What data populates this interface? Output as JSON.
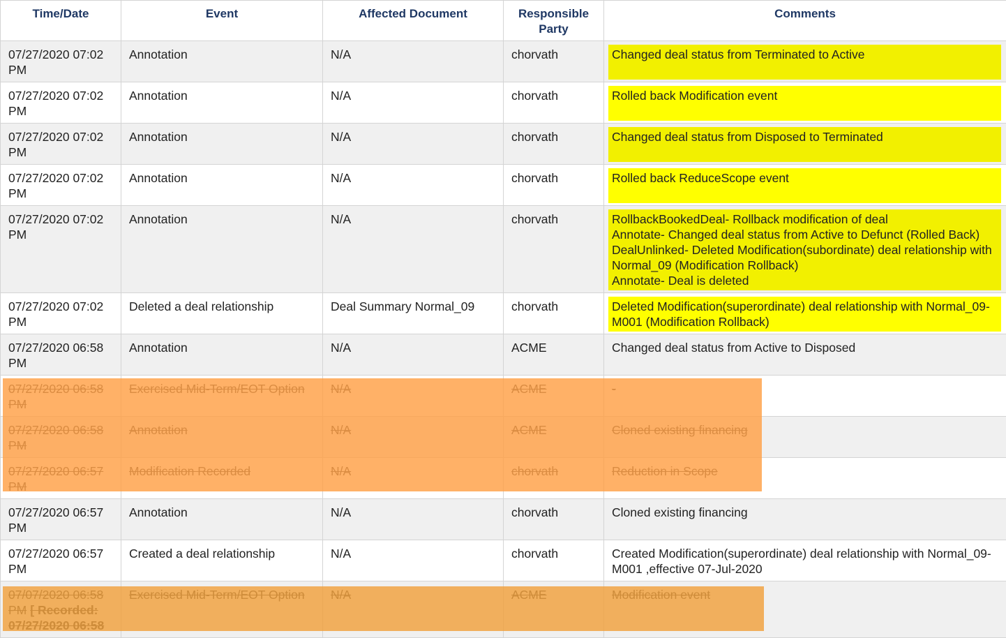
{
  "headers": {
    "time": "Time/Date",
    "event": "Event",
    "document": "Affected Document",
    "party_line1": "Responsible",
    "party_line2": "Party",
    "comments": "Comments"
  },
  "highlight_colors": {
    "yellow": "#ffff00",
    "orange": "#ffa64a"
  },
  "rows": [
    {
      "time": "07/27/2020 07:02 PM",
      "event": "Annotation",
      "document": "N/A",
      "party": "chorvath",
      "comment_lines": [
        "Changed deal status from Terminated to Active"
      ]
    },
    {
      "time": "07/27/2020 07:02 PM",
      "event": "Annotation",
      "document": "N/A",
      "party": "chorvath",
      "comment_lines": [
        "Rolled back Modification event"
      ]
    },
    {
      "time": "07/27/2020 07:02 PM",
      "event": "Annotation",
      "document": "N/A",
      "party": "chorvath",
      "comment_lines": [
        "Changed deal status from Disposed to Terminated"
      ]
    },
    {
      "time": "07/27/2020 07:02 PM",
      "event": "Annotation",
      "document": "N/A",
      "party": "chorvath",
      "comment_lines": [
        "Rolled back ReduceScope event"
      ]
    },
    {
      "time": "07/27/2020 07:02 PM",
      "event": "Annotation",
      "document": "N/A",
      "party": "chorvath",
      "comment_lines": [
        "RollbackBookedDeal- Rollback modification of deal",
        "Annotate- Changed deal status from Active to Defunct (Rolled Back)",
        "DealUnlinked- Deleted Modification(subordinate) deal relationship with Normal_09 (Modification Rollback)",
        "Annotate- Deal is deleted"
      ]
    },
    {
      "time": "07/27/2020 07:02 PM",
      "event": "Deleted a deal relationship",
      "document": "Deal Summary Normal_09",
      "party": "chorvath",
      "comment_lines": [
        "Deleted Modification(superordinate) deal relationship with Normal_09-M001 (Modification Rollback)"
      ]
    },
    {
      "time": "07/27/2020 06:58 PM",
      "event": "Annotation",
      "document": "N/A",
      "party": "ACME",
      "comment_lines": [
        "Changed deal status from Active to Disposed"
      ]
    },
    {
      "time": "07/27/2020 06:58 PM",
      "event": "Exercised Mid-Term/EOT Option",
      "document": "N/A",
      "party": "ACME",
      "comment_lines": [
        "-"
      ]
    },
    {
      "time": "07/27/2020 06:58 PM",
      "event": "Annotation",
      "document": "N/A",
      "party": "ACME",
      "comment_lines": [
        "Cloned existing financing"
      ]
    },
    {
      "time": "07/27/2020 06:57 PM",
      "event": "Modification Recorded",
      "document": "N/A",
      "party": "chorvath",
      "comment_lines": [
        "Reduction in Scope"
      ]
    },
    {
      "time": "07/27/2020 06:57 PM",
      "event": "Annotation",
      "document": "N/A",
      "party": "chorvath",
      "comment_lines": [
        "Cloned existing financing"
      ]
    },
    {
      "time": "07/27/2020 06:57 PM",
      "event": "Created a deal relationship",
      "document": "N/A",
      "party": "chorvath",
      "comment_lines": [
        "Created Modification(superordinate) deal relationship with Normal_09-M001 ,effective 07-Jul-2020"
      ]
    },
    {
      "time": "07/07/2020 06:58 PM",
      "time_recorded": "[ Recorded: 07/27/2020 06:58",
      "event": "Exercised Mid-Term/EOT Option",
      "document": "N/A",
      "party": "ACME",
      "comment_lines": [
        "Modification event"
      ]
    }
  ]
}
